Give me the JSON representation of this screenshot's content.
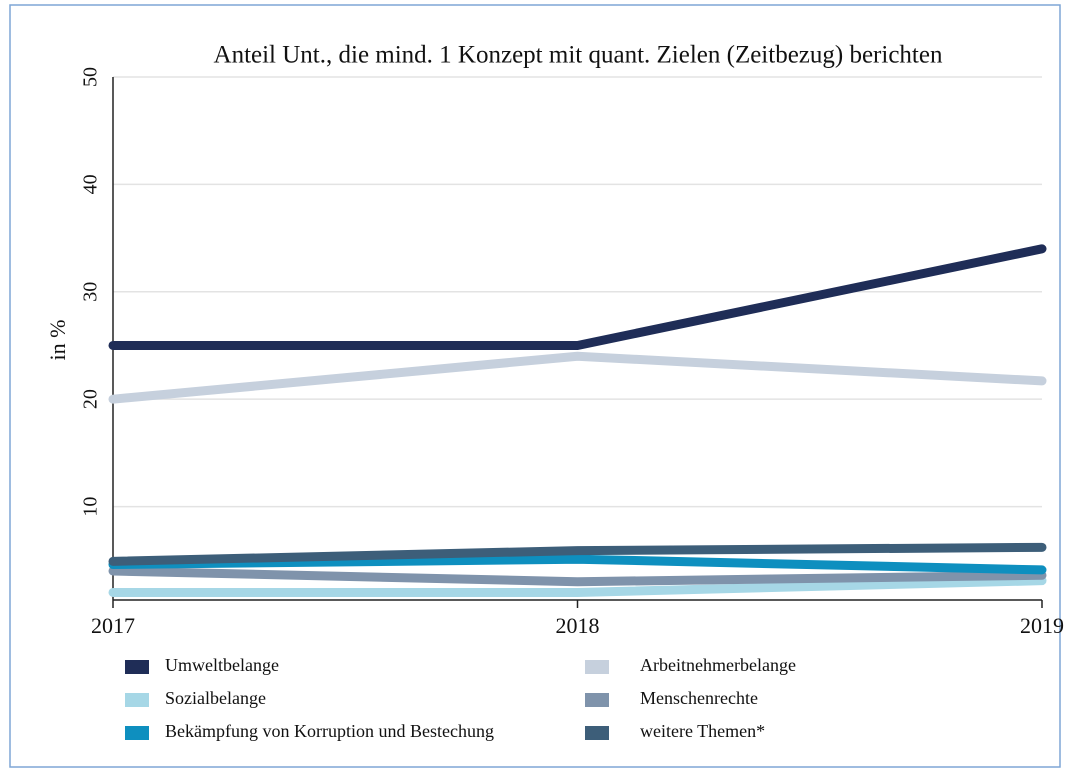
{
  "chart_data": {
    "type": "line",
    "title": "Anteil Unt., die mind. 1 Konzept mit quant. Zielen (Zeitbezug) berichten",
    "y_label": "in %",
    "categories": [
      "2017",
      "2018",
      "2019"
    ],
    "series": [
      {
        "name": "Umweltbelange",
        "color": "#1f2d57",
        "values": [
          25,
          25,
          34
        ]
      },
      {
        "name": "Arbeitnehmerbelange",
        "color": "#c6d0dd",
        "values": [
          20,
          24,
          21.7
        ]
      },
      {
        "name": "Sozialbelange",
        "color": "#a6d7e6",
        "values": [
          2,
          2,
          3.1
        ]
      },
      {
        "name": "Menschenrechte",
        "color": "#7f93ab",
        "values": [
          4,
          3,
          3.6
        ]
      },
      {
        "name": "Bekämpfung von Korruption und Bestechung",
        "color": "#0e8fbf",
        "values": [
          4.6,
          5.1,
          4.1
        ]
      },
      {
        "name": "weitere Themen*",
        "color": "#3d5e79",
        "values": [
          4.9,
          5.9,
          6.2
        ]
      }
    ],
    "ylim": [
      1.3,
      50
    ],
    "yticks": [
      10,
      20,
      30,
      40,
      50
    ],
    "grid": true
  }
}
